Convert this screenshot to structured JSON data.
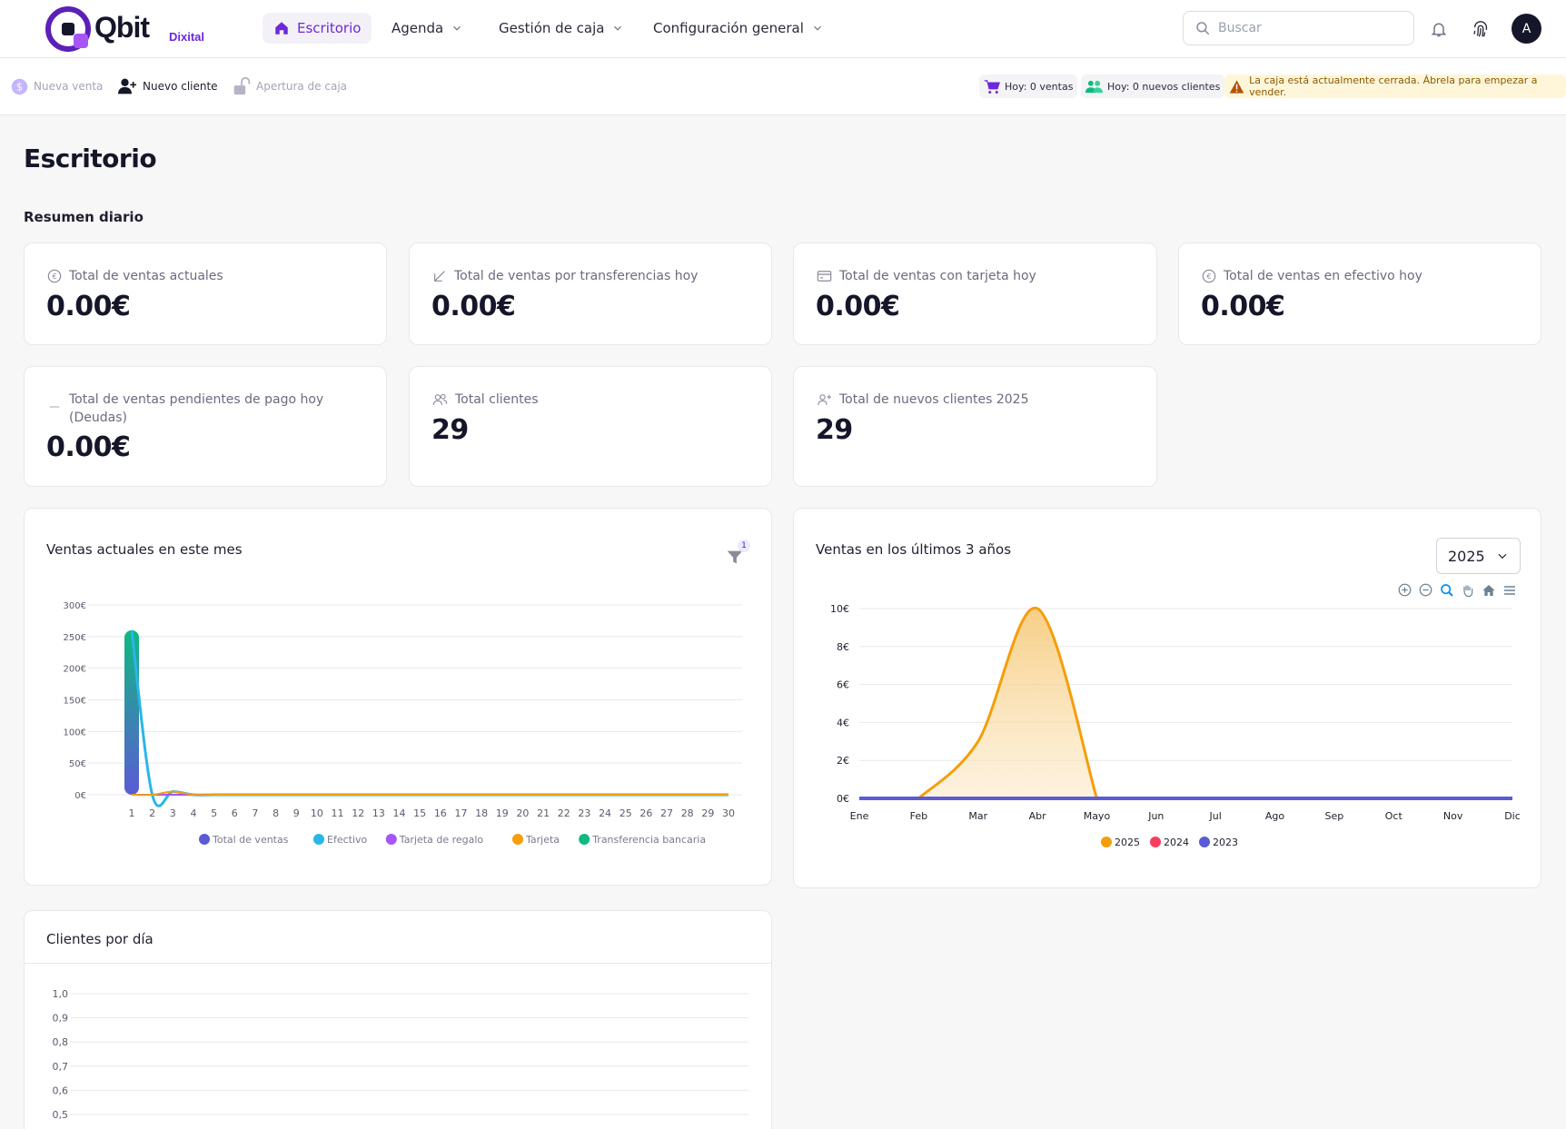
{
  "app": {
    "brand": "Qbit",
    "brand_sub": "Dixital",
    "logo_name": "qbit-logo"
  },
  "nav": {
    "items": [
      {
        "label": "Escritorio",
        "active": true,
        "icon": "home-icon"
      },
      {
        "label": "Agenda",
        "active": false,
        "icon": "chevron-down-icon"
      },
      {
        "label": "Gestión de caja",
        "active": false,
        "icon": "chevron-down-icon"
      },
      {
        "label": "Configuración general",
        "active": false,
        "icon": "chevron-down-icon"
      }
    ],
    "search_placeholder": "Buscar",
    "avatar_initial": "A"
  },
  "actionbar": {
    "nueva_venta": "Nueva venta",
    "nuevo_cliente": "Nuevo cliente",
    "apertura_caja": "Apertura de caja",
    "hoy_ventas": "Hoy: 0 ventas",
    "hoy_clientes": "Hoy: 0 nuevos clientes",
    "caja_warning": "La caja está actualmente cerrada. Ábrela para empezar a vender."
  },
  "page": {
    "title": "Escritorio",
    "section": "Resumen diario"
  },
  "stats": [
    {
      "label": "Total de ventas actuales",
      "value": "0.00€",
      "icon": "euro-icon"
    },
    {
      "label": "Total de ventas por transferencias hoy",
      "value": "0.00€",
      "icon": "arrow-down-left-icon"
    },
    {
      "label": "Total de ventas con tarjeta hoy",
      "value": "0.00€",
      "icon": "credit-card-icon"
    },
    {
      "label": "Total de ventas en efectivo hoy",
      "value": "0.00€",
      "icon": "euro-icon"
    },
    {
      "label": "Total de ventas pendientes de pago hoy (Deudas)",
      "value": "0.00€",
      "icon": "minus-icon"
    },
    {
      "label": "Total clientes",
      "value": "29",
      "icon": "users-icon"
    },
    {
      "label": "Total de nuevos clientes 2025",
      "value": "29",
      "icon": "user-plus-icon"
    }
  ],
  "charts": {
    "monthly_title": "Ventas actuales en este mes",
    "filter_badge": "1",
    "years_title": "Ventas en los últimos 3 años",
    "year_selected": "2025",
    "clients_title": "Clientes por día"
  },
  "colors": {
    "accent": "#6d28d9",
    "total": "#5b5bd6",
    "efectivo": "#29b6e8",
    "regalo": "#a855f7",
    "tarjeta": "#f59e0b",
    "transferencia": "#10b981",
    "y2024": "#f43f5e"
  },
  "chart_data": [
    {
      "type": "area",
      "title": "Ventas actuales en este mes",
      "categories": [
        "1",
        "2",
        "3",
        "4",
        "5",
        "6",
        "7",
        "8",
        "9",
        "10",
        "11",
        "12",
        "13",
        "14",
        "15",
        "16",
        "17",
        "18",
        "19",
        "20",
        "21",
        "22",
        "23",
        "24",
        "25",
        "26",
        "27",
        "28",
        "29",
        "30"
      ],
      "ylim": [
        0,
        300
      ],
      "y_ticks": [
        "0€",
        "50€",
        "100€",
        "150€",
        "200€",
        "250€",
        "300€"
      ],
      "series": [
        {
          "name": "Total de ventas",
          "values": [
            260,
            0,
            5,
            0,
            0,
            0,
            0,
            0,
            0,
            0,
            0,
            0,
            0,
            0,
            0,
            0,
            0,
            0,
            0,
            0,
            0,
            0,
            0,
            0,
            0,
            0,
            0,
            0,
            0,
            0
          ]
        },
        {
          "name": "Efectivo",
          "values": [
            260,
            0,
            5,
            0,
            0,
            0,
            0,
            0,
            0,
            0,
            0,
            0,
            0,
            0,
            0,
            0,
            0,
            0,
            0,
            0,
            0,
            0,
            0,
            0,
            0,
            0,
            0,
            0,
            0,
            0
          ]
        },
        {
          "name": "Tarjeta de regalo",
          "values": [
            0,
            0,
            0,
            0,
            0,
            0,
            0,
            0,
            0,
            0,
            0,
            0,
            0,
            0,
            0,
            0,
            0,
            0,
            0,
            0,
            0,
            0,
            0,
            0,
            0,
            0,
            0,
            0,
            0,
            0
          ]
        },
        {
          "name": "Tarjeta",
          "values": [
            0,
            0,
            5,
            0,
            0,
            0,
            0,
            0,
            0,
            0,
            0,
            0,
            0,
            0,
            0,
            0,
            0,
            0,
            0,
            0,
            0,
            0,
            0,
            0,
            0,
            0,
            0,
            0,
            0,
            0
          ]
        },
        {
          "name": "Transferencia bancaria",
          "values": [
            260,
            0,
            0,
            0,
            0,
            0,
            0,
            0,
            0,
            0,
            0,
            0,
            0,
            0,
            0,
            0,
            0,
            0,
            0,
            0,
            0,
            0,
            0,
            0,
            0,
            0,
            0,
            0,
            0,
            0
          ]
        }
      ]
    },
    {
      "type": "area",
      "title": "Ventas en los últimos 3 años",
      "categories": [
        "Ene",
        "Feb",
        "Mar",
        "Abr",
        "Mayo",
        "Jun",
        "Jul",
        "Ago",
        "Sep",
        "Oct",
        "Nov",
        "Dic"
      ],
      "ylim": [
        0,
        10
      ],
      "y_ticks": [
        "0€",
        "2€",
        "4€",
        "6€",
        "8€",
        "10€"
      ],
      "series": [
        {
          "name": "2025",
          "values": [
            0,
            0,
            3,
            10,
            0,
            0,
            0,
            0,
            0,
            0,
            0,
            0
          ]
        },
        {
          "name": "2024",
          "values": [
            0,
            0,
            0,
            0,
            0,
            0,
            0,
            0,
            0,
            0,
            0,
            0
          ]
        },
        {
          "name": "2023",
          "values": [
            0,
            0,
            0,
            0,
            0,
            0,
            0,
            0,
            0,
            0,
            0,
            0
          ]
        }
      ]
    },
    {
      "type": "line",
      "title": "Clientes por día",
      "y_ticks": [
        "1,0",
        "0,9",
        "0,8",
        "0,7",
        "0,6",
        "0,5"
      ],
      "ylim": [
        0,
        1
      ]
    }
  ]
}
